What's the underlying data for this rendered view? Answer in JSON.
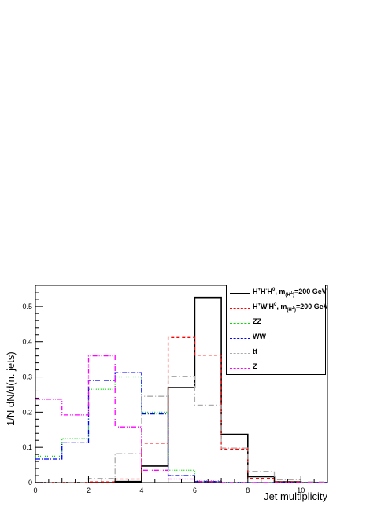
{
  "chart_data": {
    "type": "histogram",
    "xlabel": "Jet multiplicity",
    "ylabel": "1/N dN/d(n. jets)",
    "xlim": [
      0,
      11
    ],
    "ylim": [
      0,
      0.56
    ],
    "xticks": [
      "0",
      "2",
      "4",
      "6",
      "8",
      "10"
    ],
    "yticks": [
      "0",
      "0.1",
      "0.2",
      "0.3",
      "0.4",
      "0.5"
    ],
    "bin_edges": [
      0,
      1,
      2,
      3,
      4,
      5,
      6,
      7,
      8,
      9,
      10,
      11
    ],
    "legend_position": "top-right",
    "series": [
      {
        "name": "H⁺H⁻H⁰, m(H±)=200 GeV",
        "label_html": "H<sup>+</sup>H<sup>-</sup>H<sup>0</sup>, m<sub>(H<sup>±</sup>)</sub>=200 GeV",
        "color": "#000000",
        "dash": "",
        "width": 1.6,
        "values": [
          0.0,
          0.0,
          0.0,
          0.003,
          0.047,
          0.27,
          0.525,
          0.137,
          0.017,
          0.002,
          0.0
        ]
      },
      {
        "name": "H⁺W⁻H⁰, m(H±)=200 GeV",
        "label_html": "H<sup>+</sup>W<sup>-</sup>H<sup>0</sup>, m<sub>(H<sup>±</sup>)</sub>=200 GeV",
        "color": "#ff0000",
        "dash": "4,3",
        "width": 1.3,
        "values": [
          0.0,
          0.0,
          0.002,
          0.01,
          0.112,
          0.412,
          0.362,
          0.095,
          0.012,
          0.002,
          0.0
        ]
      },
      {
        "name": "ZZ",
        "label_html": "ZZ",
        "color": "#00dd00",
        "dash": "1,2",
        "width": 1.3,
        "values": [
          0.075,
          0.125,
          0.265,
          0.3,
          0.2,
          0.035,
          0.005,
          0.001,
          0.0,
          0.0,
          0.0
        ]
      },
      {
        "name": "WW",
        "label_html": "WW",
        "color": "#0000ff",
        "dash": "6,2,1,2",
        "width": 1.3,
        "values": [
          0.067,
          0.113,
          0.29,
          0.312,
          0.195,
          0.02,
          0.003,
          0.0,
          0.0,
          0.0,
          0.0
        ]
      },
      {
        "name": "t̄t",
        "label_html": "t<span style='text-decoration:overline'>t</span>",
        "color": "#aaaaaa",
        "dash": "7,3,1,3",
        "width": 1.3,
        "values": [
          0.0,
          0.0,
          0.012,
          0.082,
          0.245,
          0.302,
          0.22,
          0.098,
          0.032,
          0.008,
          0.002
        ]
      },
      {
        "name": "Z",
        "label_html": "Z",
        "color": "#ff00ff",
        "dash": "6,2,1,2,1,2",
        "width": 1.3,
        "values": [
          0.237,
          0.192,
          0.36,
          0.158,
          0.035,
          0.01,
          0.003,
          0.0,
          0.0,
          0.0,
          0.0
        ]
      }
    ]
  }
}
